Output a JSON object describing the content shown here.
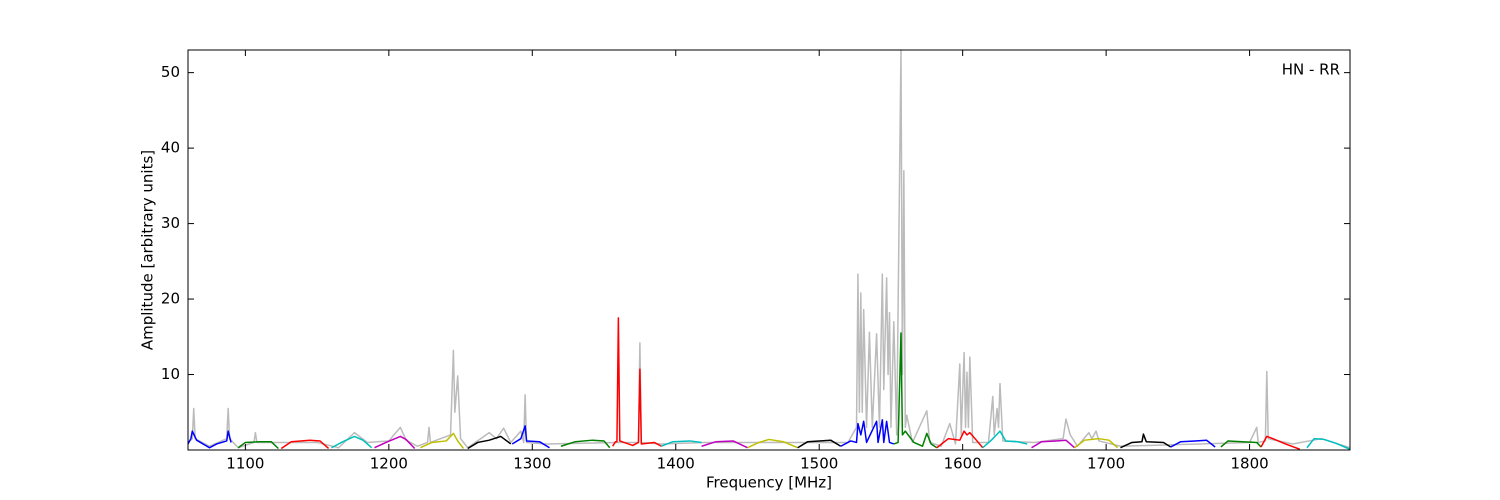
{
  "chart_data": {
    "type": "line",
    "xlabel": "Frequency [MHz]",
    "ylabel": "Amplitude [arbitrary units]",
    "annotation": "HN - RR",
    "xlim": [
      1060,
      1870
    ],
    "ylim": [
      0,
      53
    ],
    "xticks": [
      1100,
      1200,
      1300,
      1400,
      1500,
      1600,
      1700,
      1800
    ],
    "yticks": [
      10,
      20,
      30,
      40,
      50
    ],
    "series": [
      {
        "color": "#bbbbbb",
        "x": [
          1060,
          1063,
          1064,
          1065,
          1075,
          1087,
          1088,
          1089,
          1095,
          1106,
          1107,
          1108,
          1125,
          1150,
          1165,
          1176,
          1185,
          1200,
          1208,
          1212,
          1220,
          1227,
          1228,
          1229,
          1243,
          1245,
          1246,
          1248,
          1250,
          1255,
          1270,
          1275,
          1280,
          1285,
          1292,
          1294,
          1295,
          1296,
          1310,
          1360,
          1374,
          1375,
          1376,
          1390,
          1420,
          1500,
          1520,
          1526,
          1527,
          1528,
          1529,
          1530,
          1531,
          1533,
          1535,
          1537,
          1540,
          1542,
          1544,
          1545,
          1547,
          1548,
          1549,
          1550,
          1552,
          1554,
          1557,
          1558,
          1559,
          1560,
          1561,
          1565,
          1575,
          1577,
          1585,
          1591,
          1595,
          1598,
          1599,
          1601,
          1602,
          1603,
          1604,
          1605,
          1607,
          1618,
          1621,
          1622,
          1624,
          1625,
          1626,
          1628,
          1650,
          1670,
          1672,
          1675,
          1680,
          1688,
          1690,
          1693,
          1695,
          1710,
          1800,
          1805,
          1806,
          1811,
          1812,
          1813,
          1830,
          1850,
          1870
        ],
        "values": [
          1,
          1.5,
          5.5,
          1.5,
          0.5,
          1.5,
          5.5,
          1.5,
          0.3,
          1,
          2.3,
          1,
          1,
          1,
          0.3,
          2.3,
          1,
          1.2,
          3,
          1.3,
          0.5,
          1,
          3,
          1,
          2,
          13.2,
          5,
          9.8,
          1.5,
          0.3,
          2.3,
          1.5,
          2.9,
          1,
          2.5,
          1,
          7.3,
          1,
          0.8,
          1,
          1,
          14.2,
          1,
          0.8,
          1,
          1,
          1,
          3,
          23.3,
          5,
          20.8,
          5,
          18.6,
          3,
          15.6,
          3,
          15.4,
          3,
          23.3,
          8,
          22.8,
          10,
          18.2,
          3,
          17,
          2,
          53,
          10,
          37,
          3,
          4.6,
          1,
          5.2,
          1,
          0.5,
          3.5,
          0.8,
          11.4,
          2,
          12.9,
          3,
          10.3,
          3,
          12.3,
          1,
          1,
          7.1,
          2,
          5.5,
          3,
          8.8,
          1.2,
          1,
          1.5,
          4.1,
          2,
          0.5,
          2.3,
          1.5,
          2.5,
          1.2,
          0.5,
          1,
          3,
          1,
          1.2,
          10.4,
          1.5,
          0.8,
          1.5,
          0.3
        ]
      },
      {
        "color": "#0000ff",
        "x": [
          1060,
          1062,
          1063,
          1066,
          1075,
          1080,
          1087,
          1088,
          1090
        ],
        "values": [
          0.8,
          1.5,
          2.5,
          1.3,
          0.3,
          0.8,
          1.2,
          2.5,
          1.0
        ]
      },
      {
        "color": "#008000",
        "x": [
          1095,
          1100,
          1110,
          1118,
          1123
        ],
        "values": [
          0.3,
          1,
          1.1,
          1.1,
          0.2
        ]
      },
      {
        "color": "#ff0000",
        "x": [
          1125,
          1132,
          1145,
          1152,
          1158
        ],
        "values": [
          0.2,
          1.1,
          1.3,
          1.2,
          0.2
        ]
      },
      {
        "color": "#00bfbf",
        "x": [
          1160,
          1168,
          1176,
          1182,
          1188
        ],
        "values": [
          0.3,
          1.1,
          1.8,
          1.3,
          0.3
        ]
      },
      {
        "color": "#bf00bf",
        "x": [
          1190,
          1198,
          1208,
          1212,
          1218
        ],
        "values": [
          0.3,
          1.0,
          1.8,
          1.4,
          0.2
        ]
      },
      {
        "color": "#bfbf00",
        "x": [
          1222,
          1230,
          1240,
          1245,
          1248,
          1252
        ],
        "values": [
          0.3,
          1.0,
          1.2,
          2.2,
          1.2,
          0.2
        ]
      },
      {
        "color": "#000000",
        "x": [
          1255,
          1262,
          1270,
          1278,
          1285
        ],
        "values": [
          0.2,
          1.0,
          1.3,
          1.8,
          0.8
        ]
      },
      {
        "color": "#0000ff",
        "x": [
          1286,
          1292,
          1295,
          1296,
          1305,
          1312
        ],
        "values": [
          0.8,
          1.5,
          3.2,
          1.2,
          1.1,
          0.3
        ]
      },
      {
        "color": "#008000",
        "x": [
          1320,
          1330,
          1342,
          1350,
          1354
        ],
        "values": [
          0.5,
          1.1,
          1.3,
          1.2,
          0.3
        ]
      },
      {
        "color": "#ff0000",
        "x": [
          1356,
          1358,
          1359,
          1360,
          1361,
          1370,
          1374,
          1375,
          1376,
          1385,
          1390
        ],
        "values": [
          0.5,
          1.1,
          1.1,
          17.5,
          1.2,
          0.6,
          1.0,
          10.7,
          0.8,
          1.0,
          0.5
        ]
      },
      {
        "color": "#00bfbf",
        "x": [
          1390,
          1398,
          1410,
          1418
        ],
        "values": [
          0.5,
          1.1,
          1.2,
          1.0
        ]
      },
      {
        "color": "#bf00bf",
        "x": [
          1418,
          1428,
          1440,
          1450
        ],
        "values": [
          0.5,
          1.1,
          1.2,
          0.3
        ]
      },
      {
        "color": "#bfbf00",
        "x": [
          1450,
          1458,
          1465,
          1475,
          1485
        ],
        "values": [
          0.3,
          1.0,
          1.4,
          1.1,
          0.3
        ]
      },
      {
        "color": "#000000",
        "x": [
          1485,
          1492,
          1500,
          1508,
          1515
        ],
        "values": [
          0.3,
          1.1,
          1.2,
          1.3,
          0.5
        ]
      },
      {
        "color": "#0000ff",
        "x": [
          1515,
          1522,
          1526,
          1527,
          1529,
          1531,
          1533,
          1540,
          1541,
          1544,
          1545,
          1547,
          1549,
          1552
        ],
        "values": [
          0.5,
          1.2,
          1.0,
          3.5,
          2.0,
          3.8,
          1.0,
          3.8,
          1.0,
          4.0,
          1.0,
          3.8,
          1.0,
          0.8
        ]
      },
      {
        "color": "#008000",
        "x": [
          1552,
          1555,
          1557,
          1558,
          1560,
          1566,
          1572,
          1575,
          1578,
          1582
        ],
        "values": [
          0.8,
          1.0,
          15.5,
          2.0,
          2.5,
          1.0,
          0.5,
          2.2,
          0.8,
          0.3
        ]
      },
      {
        "color": "#ff0000",
        "x": [
          1582,
          1590,
          1598,
          1601,
          1603,
          1605,
          1610,
          1614
        ],
        "values": [
          0.3,
          1.5,
          1.3,
          2.5,
          2.0,
          2.3,
          1.2,
          0.3
        ]
      },
      {
        "color": "#00bfbf",
        "x": [
          1614,
          1620,
          1626,
          1630,
          1638,
          1645
        ],
        "values": [
          0.3,
          1.3,
          2.5,
          1.2,
          1.1,
          0.8
        ]
      },
      {
        "color": "#bf00bf",
        "x": [
          1648,
          1655,
          1665,
          1672,
          1678
        ],
        "values": [
          0.3,
          1.1,
          1.2,
          1.3,
          0.3
        ]
      },
      {
        "color": "#bfbf00",
        "x": [
          1678,
          1685,
          1695,
          1702,
          1708
        ],
        "values": [
          0.3,
          1.3,
          1.5,
          1.3,
          0.3
        ]
      },
      {
        "color": "#000000",
        "x": [
          1710,
          1718,
          1725,
          1726,
          1728,
          1740,
          1745
        ],
        "values": [
          0.3,
          1.0,
          1.1,
          2.1,
          1.1,
          1.0,
          0.4
        ]
      },
      {
        "color": "#0000ff",
        "x": [
          1745,
          1752,
          1762,
          1770,
          1776
        ],
        "values": [
          0.4,
          1.1,
          1.2,
          1.3,
          0.4
        ]
      },
      {
        "color": "#008000",
        "x": [
          1780,
          1785,
          1795,
          1805,
          1808
        ],
        "values": [
          0.4,
          1.2,
          1.1,
          1.0,
          0.4
        ]
      },
      {
        "color": "#ff0000",
        "x": [
          1808,
          1812,
          1815,
          1825,
          1835
        ],
        "values": [
          0.4,
          1.8,
          1.6,
          0.8,
          0.1
        ]
      },
      {
        "color": "#00bfbf",
        "x": [
          1840,
          1845,
          1852,
          1860,
          1870
        ],
        "values": [
          0.3,
          1.5,
          1.4,
          0.9,
          0.1
        ]
      }
    ]
  }
}
